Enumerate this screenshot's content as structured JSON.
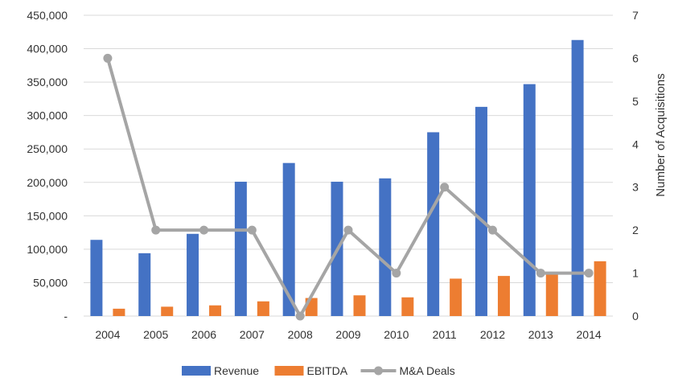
{
  "chart_data": {
    "type": "bar",
    "title": "",
    "xlabel": "",
    "ylabel": "",
    "y2label": "Number of Acquisitions",
    "categories": [
      "2004",
      "2005",
      "2006",
      "2007",
      "2008",
      "2009",
      "2010",
      "2011",
      "2012",
      "2013",
      "2014"
    ],
    "series": [
      {
        "name": "Revenue",
        "type": "bar",
        "axis": "left",
        "color": "#4472c4",
        "values": [
          114000,
          94000,
          123000,
          201000,
          229000,
          201000,
          206000,
          275000,
          313000,
          347000,
          413000
        ]
      },
      {
        "name": "EBITDA",
        "type": "bar",
        "axis": "left",
        "color": "#ed7d31",
        "values": [
          11000,
          14000,
          16000,
          22000,
          27000,
          31000,
          28000,
          56000,
          60000,
          63000,
          82000
        ]
      },
      {
        "name": "M&A Deals",
        "type": "line",
        "axis": "right",
        "color": "#a5a5a5",
        "values": [
          6,
          2,
          2,
          2,
          0,
          2,
          1,
          3,
          2,
          1,
          1
        ]
      }
    ],
    "ylim": [
      0,
      450000
    ],
    "y_ticks": [
      0,
      50000,
      100000,
      150000,
      200000,
      250000,
      300000,
      350000,
      400000,
      450000
    ],
    "y_tick_labels": [
      "-",
      "50,000",
      "100,000",
      "150,000",
      "200,000",
      "250,000",
      "300,000",
      "350,000",
      "400,000",
      "450,000"
    ],
    "y2lim": [
      0,
      7
    ],
    "y2_ticks": [
      0,
      1,
      2,
      3,
      4,
      5,
      6,
      7
    ],
    "grid": true,
    "legend": "bottom-center"
  }
}
